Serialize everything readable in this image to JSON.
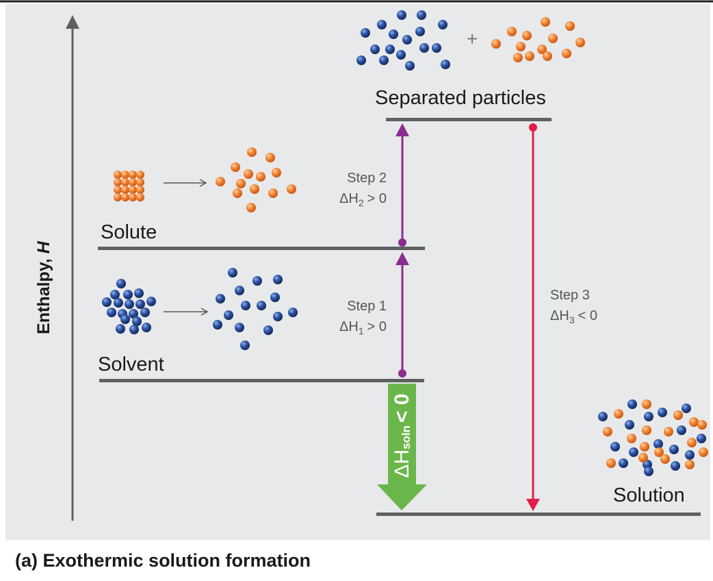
{
  "axis": {
    "label": "Enthalpy, H"
  },
  "levels": {
    "separated": "Separated particles",
    "solute": "Solute",
    "solvent": "Solvent",
    "solution": "Solution"
  },
  "steps": {
    "step1": {
      "title": "Step 1",
      "enthalpy": "ΔH",
      "sub": "1",
      "relation": "> 0"
    },
    "step2": {
      "title": "Step 2",
      "enthalpy": "ΔH",
      "sub": "2",
      "relation": "> 0"
    },
    "step3": {
      "title": "Step 3",
      "enthalpy": "ΔH",
      "sub": "3",
      "relation": "< 0"
    }
  },
  "overall": {
    "symbol": "ΔH",
    "sub": "soln",
    "relation": "< 0"
  },
  "plus_sign": "+",
  "caption": "(a) Exothermic solution formation",
  "colors": {
    "background": "#e8e9ea",
    "level_line": "#5f6062",
    "arrow_purple": "#8a2d8f",
    "arrow_red": "#e31c48",
    "arrow_green": "#6ab64a",
    "particle_blue": "#2a4f9e",
    "particle_orange": "#f07f2d"
  }
}
